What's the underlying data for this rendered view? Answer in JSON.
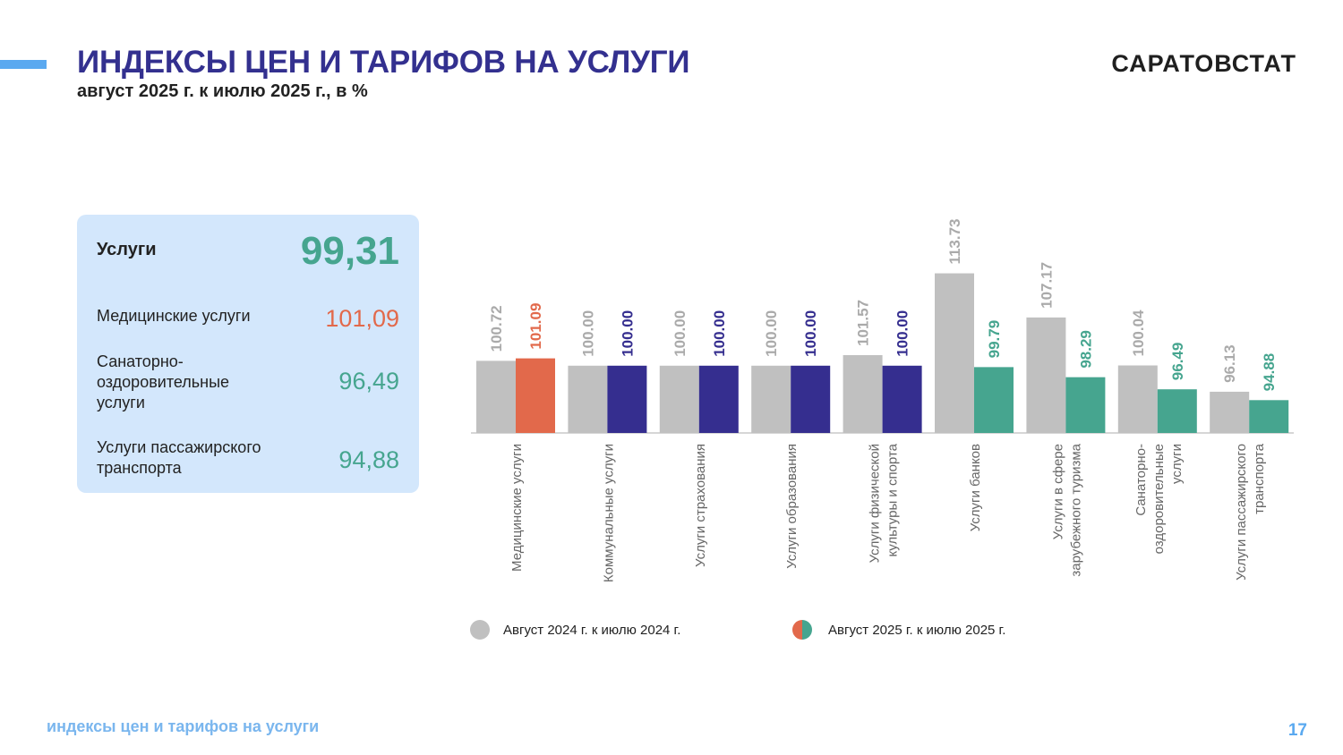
{
  "header": {
    "title": "ИНДЕКСЫ ЦЕН И ТАРИФОВ НА УСЛУГИ",
    "subtitle": "август 2025 г. к июлю 2025 г., в %",
    "brand": "САРАТОВСТАТ"
  },
  "panel": {
    "main": {
      "label": "Услуги",
      "value": "99,31"
    },
    "items": [
      {
        "label": "Медицинские услуги",
        "value": "101,09",
        "color": "#e2694b"
      },
      {
        "label": "Санаторно-\nоздоровительные\nуслуги",
        "value": "96,49",
        "color": "#46a58f"
      },
      {
        "label": "Услуги пассажирского\nтранспорта",
        "value": "94,88",
        "color": "#46a58f"
      }
    ]
  },
  "colors": {
    "prev": "#c0c0c0",
    "prev_label": "#aaaaaa",
    "up": "#e2694b",
    "flat": "#352e8f",
    "down": "#46a58f"
  },
  "chart_data": {
    "type": "bar",
    "categories": [
      "Медицинские услуги",
      "Коммунальные услуги",
      "Услуги страхования",
      "Услуги образования",
      "Услуги физической\nкультуры и спорта",
      "Услуги банков",
      "Услуги в сфере\nзарубежного туризма",
      "Санаторно-\nоздоровительные\nуслуги",
      "Услуги пассажирского\nтранспорта"
    ],
    "series": [
      {
        "name": "Август 2024 г. к июлю 2024 г.",
        "values": [
          100.72,
          100.0,
          100.0,
          100.0,
          101.57,
          113.73,
          107.17,
          100.04,
          96.13
        ]
      },
      {
        "name": "Август 2025 г. к июлю 2025 г.",
        "values": [
          101.09,
          100.0,
          100.0,
          100.0,
          100.0,
          99.79,
          98.29,
          96.49,
          94.88
        ]
      }
    ],
    "series2_colors": [
      "up",
      "flat",
      "flat",
      "flat",
      "flat",
      "down",
      "down",
      "down",
      "down"
    ],
    "data_labels": true,
    "legend_position": "bottom",
    "grid": false
  },
  "footer": {
    "text": "индексы цен и тарифов на услуги",
    "page": "17"
  }
}
